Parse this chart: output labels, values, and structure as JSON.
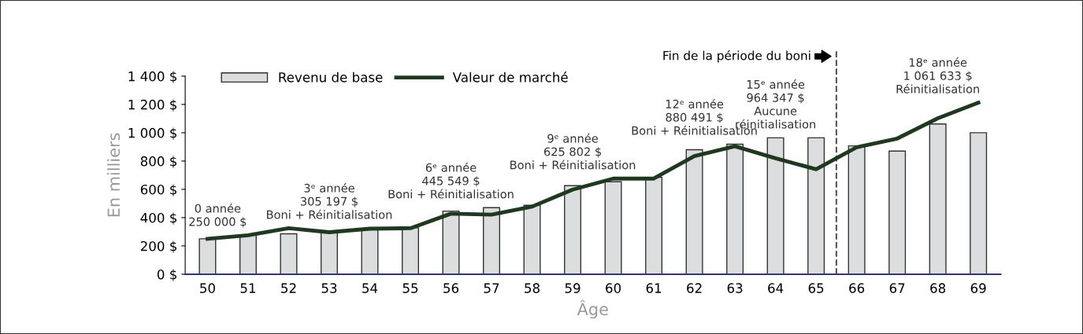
{
  "chart_data": {
    "type": "bar",
    "xlabel": "Âge",
    "ylabel": "En milliers",
    "x": [
      50,
      51,
      52,
      53,
      54,
      55,
      56,
      57,
      58,
      59,
      60,
      61,
      62,
      63,
      64,
      65,
      66,
      67,
      68,
      69
    ],
    "series": [
      {
        "name": "Revenu de base",
        "color": "#dcdddf",
        "values": [
          250,
          275,
          286,
          305,
          322,
          328,
          446,
          470,
          487,
          626,
          654,
          685,
          880,
          919,
          964,
          964,
          907,
          870,
          1062,
          1000
        ]
      },
      {
        "name": "Valeur de marché",
        "type": "line",
        "color": "#1e3a1e",
        "values": [
          250,
          275,
          325,
          297,
          322,
          325,
          428,
          421,
          478,
          598,
          676,
          676,
          835,
          904,
          820,
          742,
          898,
          959,
          1102,
          1213
        ]
      }
    ],
    "xlim": [
      49.45,
      69.55
    ],
    "xticks": [
      50,
      51,
      52,
      53,
      54,
      55,
      56,
      57,
      58,
      59,
      60,
      61,
      62,
      63,
      64,
      65,
      66,
      67,
      68,
      69
    ],
    "ylim": [
      0,
      1400
    ],
    "yticks": [
      {
        "value": 0,
        "label": "0 $"
      },
      {
        "value": 200,
        "label": "200 $"
      },
      {
        "value": 400,
        "label": "400 $"
      },
      {
        "value": 600,
        "label": "600 $"
      },
      {
        "value": 800,
        "label": "800 $"
      },
      {
        "value": 1000,
        "label": "1 000 $"
      },
      {
        "value": 1200,
        "label": "1 200 $"
      },
      {
        "value": 1400,
        "label": "1 400 $"
      }
    ],
    "ref_lines": [
      {
        "axis": "x",
        "value": 65.5,
        "label": "Fin de la période du boni",
        "color": "#555555",
        "line_style": "dashed"
      }
    ],
    "annotations": [
      {
        "text": "0 année\n250 000 $",
        "x": 50,
        "y": 250
      },
      {
        "text": "3ᵉ année\n305 197 $\nBoni + Réinitialisation",
        "x": 53,
        "y": 305
      },
      {
        "text": "6ᵉ année\n445 549 $\nBoni + Réinitialisation",
        "x": 56,
        "y": 446
      },
      {
        "text": "9ᵉ année\n625 802 $\nBoni + Réinitialisation",
        "x": 59,
        "y": 626
      },
      {
        "text": "12ᵉ année\n880 491 $\nBoni + Réinitialisation",
        "x": 62,
        "y": 880
      },
      {
        "text": "15ᵉ année\n964 347 $\nAucune\nréinitialisation",
        "x": 64,
        "y": 964
      },
      {
        "text": "18ᵉ année\n1 061 633 $\nRéinitialisation",
        "x": 68,
        "y": 1062
      }
    ],
    "legend": "top left",
    "grid": false,
    "marker": "none",
    "line_style": "solid"
  }
}
